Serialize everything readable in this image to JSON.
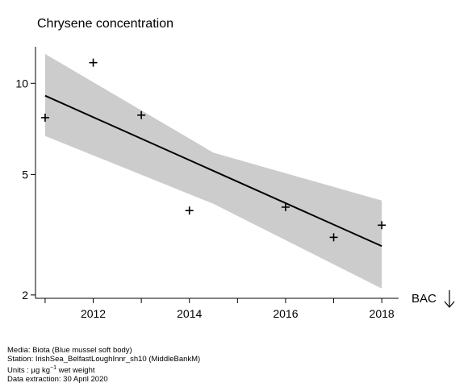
{
  "chart_data": {
    "type": "scatter",
    "title": "Chrysene concentration",
    "xlabel": "",
    "ylabel": "",
    "y_scale": "log",
    "xlim": [
      2010.8,
      2018.35
    ],
    "ylim": [
      1.95,
      13.2
    ],
    "x_ticks": [
      2012,
      2014,
      2016,
      2018
    ],
    "y_ticks": [
      2,
      5,
      10
    ],
    "grid": false,
    "points": {
      "x": [
        2011,
        2012,
        2013,
        2014,
        2016,
        2017,
        2018
      ],
      "y": [
        7.7,
        11.7,
        7.85,
        3.8,
        3.9,
        3.1,
        3.4
      ]
    },
    "trend_line": {
      "x": [
        2011,
        2018
      ],
      "y": [
        9.1,
        2.9
      ]
    },
    "confidence_band": {
      "x": [
        2011,
        2014.5,
        2018
      ],
      "upper": [
        12.5,
        5.9,
        4.1
      ],
      "lower": [
        6.7,
        4.0,
        2.1
      ]
    },
    "threshold": {
      "label": "BAC",
      "direction": "below"
    },
    "colors": {
      "band": "#cccccc",
      "line": "#000000",
      "marker": "#000000"
    }
  },
  "caption": {
    "media": "Media: Biota (Blue mussel soft body)",
    "station": "Station: IrishSea_BelfastLoughInnr_sh10 (MiddleBankM)",
    "units_prefix": "Units : µg kg",
    "units_sup": "−1",
    "units_suffix": " wet weight",
    "extraction": "Data extraction: 30 April 2020"
  }
}
